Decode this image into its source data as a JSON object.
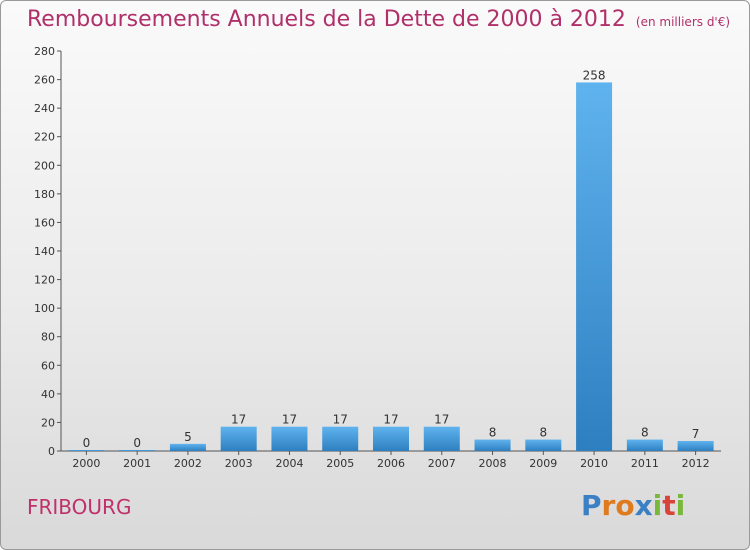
{
  "chart_data": {
    "type": "bar",
    "title": "Remboursements Annuels de la Dette de 2000 à 2012",
    "subtitle": "(en milliers d'€)",
    "categories": [
      "2000",
      "2001",
      "2002",
      "2003",
      "2004",
      "2005",
      "2006",
      "2007",
      "2008",
      "2009",
      "2010",
      "2011",
      "2012"
    ],
    "values": [
      0,
      0,
      5,
      17,
      17,
      17,
      17,
      17,
      8,
      8,
      258,
      8,
      7
    ],
    "ylim": [
      0,
      280
    ],
    "yticks": [
      0,
      20,
      40,
      60,
      80,
      100,
      120,
      140,
      160,
      180,
      200,
      220,
      240,
      260,
      280
    ],
    "grid": false,
    "bar_color": "#3a8fd6"
  },
  "location": "FRIBOURG",
  "brand": {
    "letters": [
      {
        "ch": "P",
        "color": "#3b7fc4"
      },
      {
        "ch": "r",
        "color": "#e07a1f"
      },
      {
        "ch": "o",
        "color": "#e07a1f"
      },
      {
        "ch": "x",
        "color": "#3b7fc4"
      },
      {
        "ch": "i",
        "color": "#7ab83b"
      },
      {
        "ch": "t",
        "color": "#d9443a"
      },
      {
        "ch": "i",
        "color": "#7ab83b"
      }
    ]
  }
}
